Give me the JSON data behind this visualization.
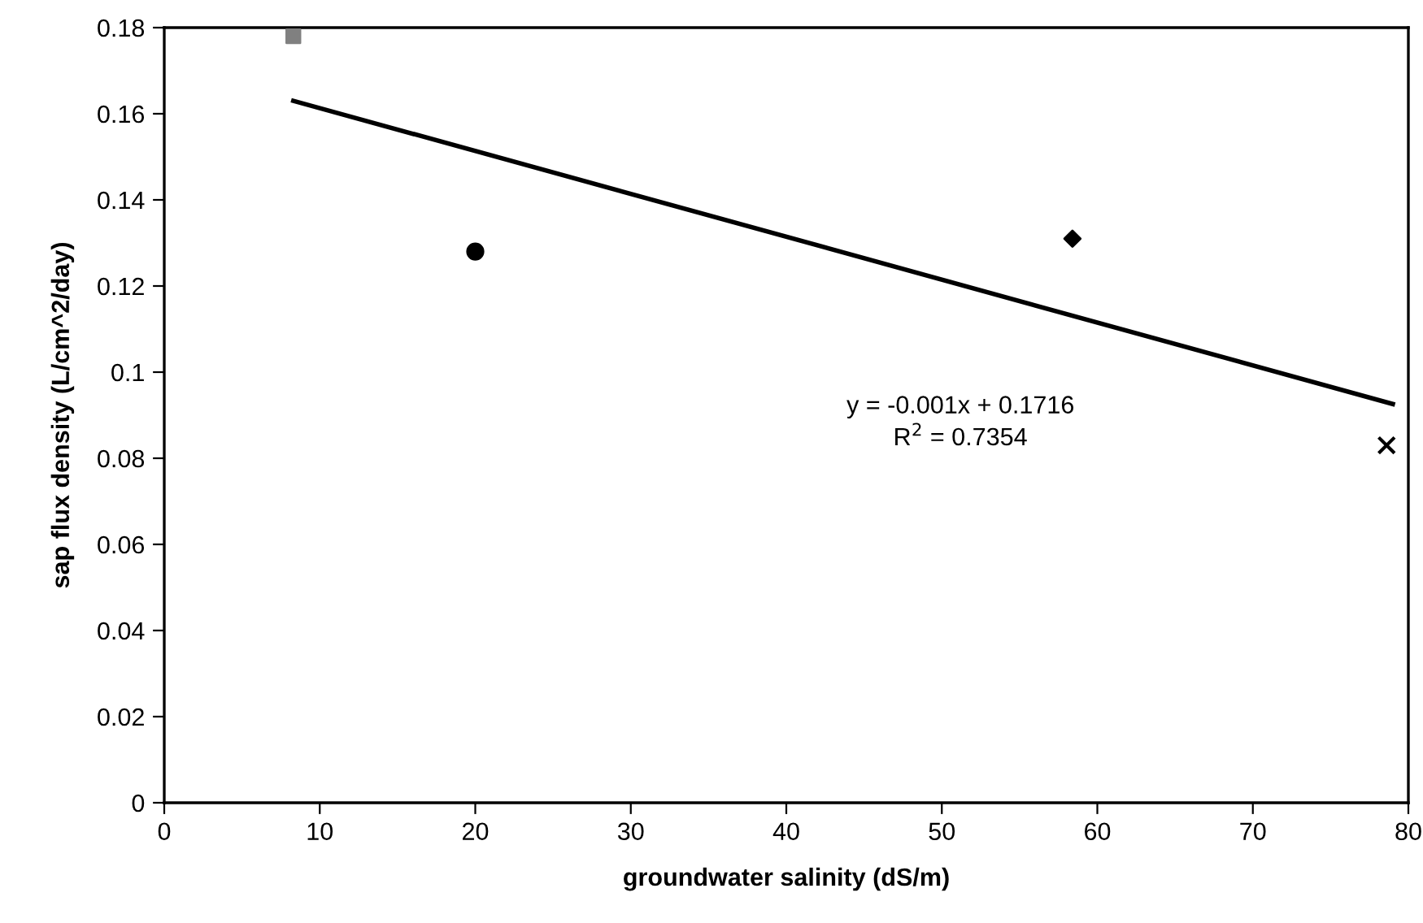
{
  "chart_data": {
    "type": "scatter",
    "xlabel": "groundwater salinity (dS/m)",
    "ylabel": "sap flux density (L/cm^2/day)",
    "xlim": [
      0,
      80
    ],
    "xticks": [
      0,
      10,
      20,
      30,
      40,
      50,
      60,
      70,
      80
    ],
    "ylim": [
      0,
      0.18
    ],
    "yticks": [
      0,
      0.02,
      0.04,
      0.06,
      0.08,
      {
        "value": 0.1,
        "label": "0.1"
      },
      0.12,
      0.14,
      0.16,
      0.18
    ],
    "grid": false,
    "legend": false,
    "series": [
      {
        "marker": "square",
        "color": "#808080",
        "x": [
          8.3
        ],
        "values": [
          0.178
        ]
      },
      {
        "marker": "circle",
        "color": "#000000",
        "x": [
          20
        ],
        "values": [
          0.128
        ]
      },
      {
        "marker": "diamond",
        "color": "#000000",
        "x": [
          58.4
        ],
        "values": [
          0.131
        ]
      },
      {
        "marker": "cross",
        "color": "#000000",
        "x": [
          78.6
        ],
        "values": [
          0.083
        ]
      },
      {
        "type": "line",
        "line_style": "solid",
        "color": "#000000",
        "x": [
          8.3,
          79
        ],
        "values": [
          0.163,
          0.0926
        ]
      }
    ],
    "annotations": [
      "y = -0.001x + 0.1716\nR$^{2}$ = 0.7354"
    ]
  }
}
